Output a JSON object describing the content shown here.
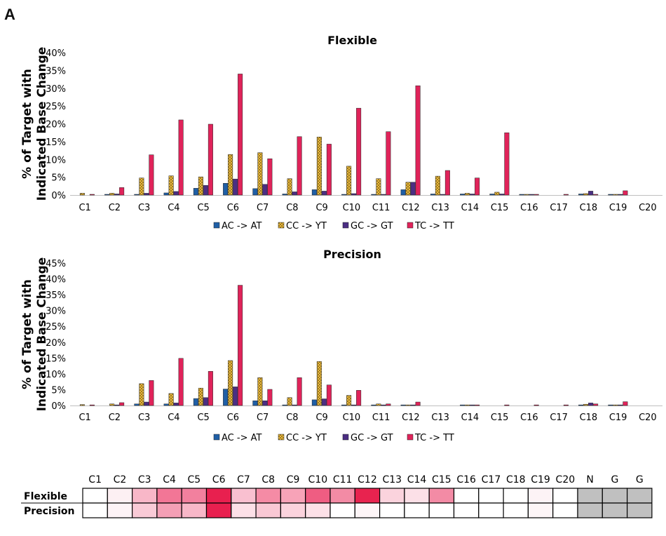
{
  "figure": {
    "panel_label": "A"
  },
  "chart_data": [
    {
      "type": "bar",
      "title": "Flexible",
      "ylabel": "% of Target with Indicated Base Change",
      "ylim": [
        0,
        40
      ],
      "yticks": [
        "0%",
        "5%",
        "10%",
        "15%",
        "20%",
        "25%",
        "30%",
        "35%",
        "40%"
      ],
      "grid": false,
      "legend_position": "bottom",
      "categories": [
        "C1",
        "C2",
        "C3",
        "C4",
        "C5",
        "C6",
        "C7",
        "C8",
        "C9",
        "C10",
        "C11",
        "C12",
        "C13",
        "C14",
        "C15",
        "C16",
        "C17",
        "C18",
        "C19",
        "C20"
      ],
      "series": [
        {
          "name": "AC -> AT",
          "color": "#1f5fa6",
          "pattern": "solid",
          "values": [
            0,
            0.2,
            0.2,
            0.6,
            1.9,
            3.3,
            1.8,
            0.3,
            1.5,
            0.2,
            0.2,
            1.5,
            0.3,
            0.3,
            0.3,
            0.2,
            0,
            0.3,
            0.2,
            0
          ]
        },
        {
          "name": "CC -> YT",
          "color": "#f5c242",
          "pattern": "crosshatch",
          "values": [
            0.5,
            0.5,
            4.8,
            5.4,
            5.1,
            11.4,
            11.9,
            4.6,
            16.3,
            8.1,
            4.6,
            3.6,
            5.3,
            0.5,
            0.8,
            0.2,
            0,
            0.4,
            0.2,
            0
          ]
        },
        {
          "name": "GC -> GT",
          "color": "#4b2e83",
          "pattern": "solid",
          "values": [
            0,
            0.3,
            0.5,
            1.0,
            2.7,
            4.5,
            3.0,
            0.9,
            1.1,
            0.4,
            0.2,
            3.6,
            0.2,
            0.3,
            0.3,
            0.2,
            0,
            1.1,
            0.2,
            0
          ]
        },
        {
          "name": "TC -> TT",
          "color": "#e0235a",
          "pattern": "solid",
          "values": [
            0.2,
            2.1,
            11.3,
            21.1,
            19.9,
            34.0,
            10.2,
            16.4,
            14.3,
            24.4,
            17.8,
            30.7,
            6.9,
            4.8,
            17.5,
            0.2,
            0.2,
            0.2,
            1.2,
            0
          ]
        }
      ]
    },
    {
      "type": "bar",
      "title": "Precision",
      "ylabel": "% of Target with Indicated Base Change",
      "ylim": [
        0,
        45
      ],
      "yticks": [
        "0%",
        "5%",
        "10%",
        "15%",
        "20%",
        "25%",
        "30%",
        "35%",
        "40%",
        "45%"
      ],
      "grid": false,
      "legend_position": "bottom",
      "categories": [
        "C1",
        "C2",
        "C3",
        "C4",
        "C5",
        "C6",
        "C7",
        "C8",
        "C9",
        "C10",
        "C11",
        "C12",
        "C13",
        "C14",
        "C15",
        "C16",
        "C17",
        "C18",
        "C19",
        "C20"
      ],
      "series": [
        {
          "name": "AC -> AT",
          "color": "#1f5fa6",
          "pattern": "solid",
          "values": [
            0,
            0,
            0.5,
            0.5,
            2.2,
            5.2,
            1.5,
            0.2,
            1.8,
            0.2,
            0.2,
            0.2,
            0,
            0.2,
            0,
            0,
            0,
            0.2,
            0.2,
            0
          ]
        },
        {
          "name": "CC -> YT",
          "color": "#f5c242",
          "pattern": "crosshatch",
          "values": [
            0.3,
            0.5,
            6.9,
            3.8,
            5.5,
            14.2,
            8.8,
            2.5,
            13.9,
            3.2,
            0.5,
            0.2,
            0,
            0.2,
            0,
            0,
            0,
            0.4,
            0.2,
            0
          ]
        },
        {
          "name": "GC -> GT",
          "color": "#4b2e83",
          "pattern": "solid",
          "values": [
            0,
            0.2,
            1.1,
            0.8,
            2.5,
            5.9,
            1.5,
            0.2,
            2.1,
            0.2,
            0.2,
            0.2,
            0,
            0.2,
            0,
            0,
            0,
            0.8,
            0.2,
            0
          ]
        },
        {
          "name": "TC -> TT",
          "color": "#e0235a",
          "pattern": "solid",
          "values": [
            0.2,
            0.9,
            7.9,
            14.9,
            10.8,
            38.0,
            5.1,
            8.8,
            6.5,
            4.8,
            0.5,
            1.1,
            0,
            0.2,
            0.2,
            0.2,
            0.2,
            0.5,
            1.2,
            0
          ]
        }
      ]
    },
    {
      "type": "heatmap",
      "columns": [
        "C1",
        "C2",
        "C3",
        "C4",
        "C5",
        "C6",
        "C7",
        "C8",
        "C9",
        "C10",
        "C11",
        "C12",
        "C13",
        "C14",
        "C15",
        "C16",
        "C17",
        "C18",
        "C19",
        "C20",
        "N",
        "G",
        "G"
      ],
      "rows": [
        {
          "label": "Flexible",
          "colors": [
            "#ffffff",
            "#fdf0f3",
            "#f8b7c8",
            "#f27696",
            "#f2809e",
            "#e8204f",
            "#f9c0d0",
            "#f58ba5",
            "#f7a3b8",
            "#ef5d82",
            "#f38ba5",
            "#e8234f",
            "#fbd3dd",
            "#fce0e7",
            "#f38ba5",
            "#ffffff",
            "#ffffff",
            "#ffffff",
            "#fdf3f6",
            "#ffffff",
            "#c0c0c0",
            "#c0c0c0",
            "#c0c0c0"
          ]
        },
        {
          "label": "Precision",
          "colors": [
            "#ffffff",
            "#fdf3f6",
            "#f9cad6",
            "#f49fb5",
            "#f8b7c8",
            "#e8204f",
            "#fce0e7",
            "#f9c8d4",
            "#fbd3dd",
            "#fce0e7",
            "#ffffff",
            "#fdf5f7",
            "#ffffff",
            "#ffffff",
            "#ffffff",
            "#ffffff",
            "#ffffff",
            "#ffffff",
            "#fdf5f7",
            "#ffffff",
            "#c0c0c0",
            "#c0c0c0",
            "#c0c0c0"
          ]
        }
      ]
    }
  ]
}
